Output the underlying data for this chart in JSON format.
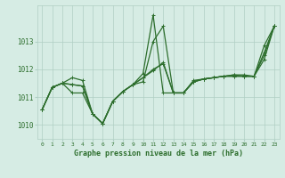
{
  "xlabel": "Graphe pression niveau de la mer (hPa)",
  "xlim": [
    -0.5,
    23.5
  ],
  "ylim": [
    1009.5,
    1014.3
  ],
  "yticks": [
    1010,
    1011,
    1012,
    1013
  ],
  "xticks": [
    0,
    1,
    2,
    3,
    4,
    5,
    6,
    7,
    8,
    9,
    10,
    11,
    12,
    13,
    14,
    15,
    16,
    17,
    18,
    19,
    20,
    21,
    22,
    23
  ],
  "bg_color": "#d6ece4",
  "grid_color": "#b0cfc4",
  "line_color": "#2d6e2d",
  "series": {
    "min_line": [
      1010.55,
      1011.35,
      1011.5,
      1011.15,
      1011.15,
      1010.4,
      1010.05,
      1010.85,
      1011.2,
      1011.45,
      1011.55,
      1013.0,
      1013.55,
      1011.15,
      1011.15,
      1011.55,
      1011.65,
      1011.7,
      1011.75,
      1011.75,
      1011.75,
      1011.75,
      1012.35,
      1013.55
    ],
    "max_line": [
      1010.55,
      1011.35,
      1011.5,
      1011.7,
      1011.6,
      1010.4,
      1010.05,
      1010.85,
      1011.2,
      1011.45,
      1011.85,
      1013.95,
      1011.15,
      1011.15,
      1011.15,
      1011.55,
      1011.65,
      1011.7,
      1011.75,
      1011.75,
      1011.75,
      1011.75,
      1012.85,
      1013.55
    ],
    "mean_line": [
      1010.55,
      1011.35,
      1011.5,
      1011.45,
      1011.4,
      1010.4,
      1010.05,
      1010.85,
      1011.2,
      1011.45,
      1011.7,
      1011.95,
      1012.25,
      1011.15,
      1011.15,
      1011.55,
      1011.65,
      1011.7,
      1011.75,
      1011.8,
      1011.75,
      1011.75,
      1012.6,
      1013.55
    ],
    "trend_line": [
      1010.55,
      1011.35,
      1011.5,
      1011.45,
      1011.4,
      1010.4,
      1010.05,
      1010.85,
      1011.2,
      1011.45,
      1011.7,
      1012.0,
      1012.2,
      1011.15,
      1011.15,
      1011.6,
      1011.65,
      1011.7,
      1011.75,
      1011.8,
      1011.8,
      1011.75,
      1012.5,
      1013.55
    ]
  },
  "marker": "+",
  "markersize": 3.5,
  "linewidth": 0.9
}
